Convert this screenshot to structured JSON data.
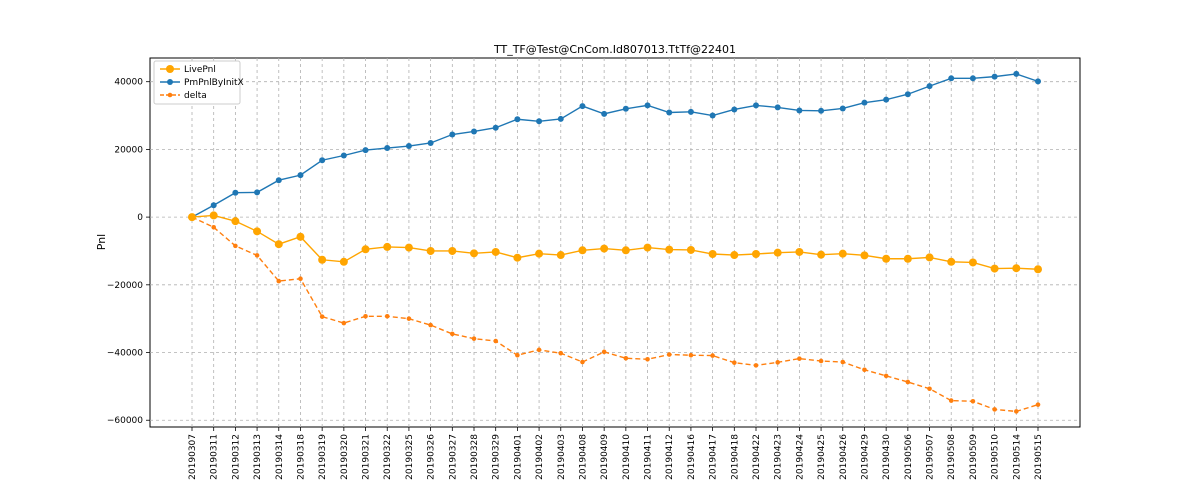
{
  "chart_data": {
    "type": "line",
    "title": "TT_TF@Test@CnCom.Id807013.TtTf@22401",
    "xlabel": "",
    "ylabel": "Pnl",
    "ylim": [
      -62000,
      47000
    ],
    "yticks": [
      -60000,
      -40000,
      -20000,
      0,
      20000,
      40000
    ],
    "ytick_labels": [
      "−60000",
      "−40000",
      "−20000",
      "0",
      "20000",
      "40000"
    ],
    "grid": true,
    "legend_position": "upper-left",
    "categories": [
      "20190307",
      "20190311",
      "20190312",
      "20190313",
      "20190314",
      "20190318",
      "20190319",
      "20190320",
      "20190321",
      "20190322",
      "20190325",
      "20190326",
      "20190327",
      "20190328",
      "20190329",
      "20190401",
      "20190402",
      "20190403",
      "20190408",
      "20190409",
      "20190410",
      "20190411",
      "20190412",
      "20190416",
      "20190417",
      "20190418",
      "20190422",
      "20190423",
      "20190424",
      "20190425",
      "20190426",
      "20190429",
      "20190430",
      "20190506",
      "20190507",
      "20190508",
      "20190509",
      "20190510",
      "20190514",
      "20190515"
    ],
    "series": [
      {
        "name": "LivePnl",
        "color": "#ffa500",
        "style": "solid",
        "marker": "large-circle",
        "values": [
          0,
          500,
          -1200,
          -4200,
          -8000,
          -5800,
          -12600,
          -13200,
          -9500,
          -8800,
          -9000,
          -10000,
          -10000,
          -10700,
          -10300,
          -12000,
          -10800,
          -11200,
          -9800,
          -9300,
          -9800,
          -9000,
          -9600,
          -9700,
          -10900,
          -11200,
          -10900,
          -10500,
          -10300,
          -11100,
          -10800,
          -11300,
          -12300,
          -12300,
          -11900,
          -13200,
          -13400,
          -15200,
          -15100,
          -15400
        ]
      },
      {
        "name": "PmPnlByInitX",
        "color": "#1f77b4",
        "style": "solid",
        "marker": "circle",
        "values": [
          0,
          3500,
          7200,
          7300,
          10900,
          12400,
          16800,
          18200,
          19800,
          20400,
          21000,
          21900,
          24400,
          25300,
          26400,
          28900,
          28300,
          29000,
          32800,
          30500,
          32000,
          33000,
          30900,
          31100,
          30000,
          31800,
          33000,
          32400,
          31500,
          31400,
          32100,
          33800,
          34700,
          36300,
          38700,
          41000,
          41000,
          41500,
          42300,
          40100
        ]
      },
      {
        "name": "delta",
        "color": "#ff7f0e",
        "style": "dashed",
        "marker": "small-circle",
        "values": [
          0,
          -3000,
          -8500,
          -11300,
          -18900,
          -18200,
          -29400,
          -31300,
          -29300,
          -29300,
          -30000,
          -31900,
          -34500,
          -35900,
          -36600,
          -40800,
          -39200,
          -40200,
          -42800,
          -39800,
          -41700,
          -42000,
          -40600,
          -40800,
          -40900,
          -43000,
          -43800,
          -42900,
          -41800,
          -42500,
          -42800,
          -45100,
          -46900,
          -48700,
          -50700,
          -54200,
          -54400,
          -56800,
          -57400,
          -55400
        ]
      }
    ]
  }
}
